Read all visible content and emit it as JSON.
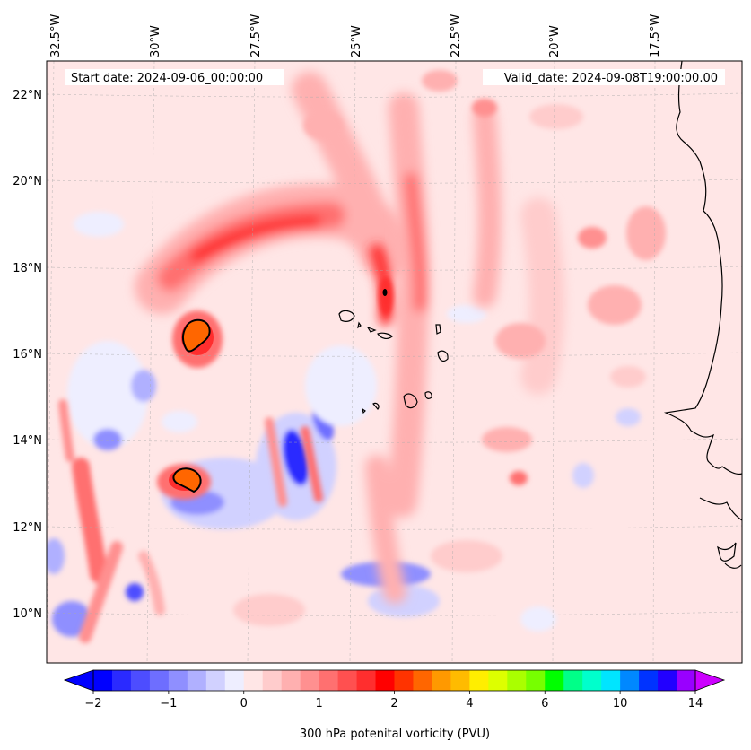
{
  "map": {
    "start_date_label": "Start date: 2024-09-06_00:00:00",
    "valid_date_label": "Valid_date: 2024-09-08T19:00:00.00",
    "lon_labels": [
      "32.5°W",
      "30°W",
      "27.5°W",
      "25°W",
      "22.5°W",
      "20°W",
      "17.5°W"
    ],
    "lat_labels": [
      "22°N",
      "20°N",
      "18°N",
      "16°N",
      "14°N",
      "12°N",
      "10°N"
    ],
    "variable": "300 hPa potential vorticity",
    "units": "PVU"
  },
  "colorbar": {
    "label": "300 hPa potenital vorticity (PVU)",
    "tick_labels": [
      "−2",
      "−1",
      "0",
      "1",
      "2",
      "4",
      "6",
      "10",
      "14"
    ],
    "colors": [
      "#0000ff",
      "#2a2aff",
      "#4d4dff",
      "#6e6eff",
      "#8f8fff",
      "#b0b0ff",
      "#d1d1ff",
      "#eeeeff",
      "#ffe6e6",
      "#ffcccc",
      "#ffb0b0",
      "#ff9090",
      "#ff7070",
      "#ff5050",
      "#ff2e2e",
      "#ff0000",
      "#ff3300",
      "#ff6600",
      "#ff9900",
      "#ffbb00",
      "#ffee00",
      "#ddff00",
      "#aaff00",
      "#77ff00",
      "#00ff00",
      "#00ff88",
      "#00ffcc",
      "#00e5ff",
      "#0088ff",
      "#0033ff",
      "#2200ff",
      "#9900ff"
    ],
    "under_color": "#0000ff",
    "over_color": "#cc00ff"
  },
  "colors": {
    "background_field": "#ffe6e6",
    "coastline": "#000000"
  }
}
